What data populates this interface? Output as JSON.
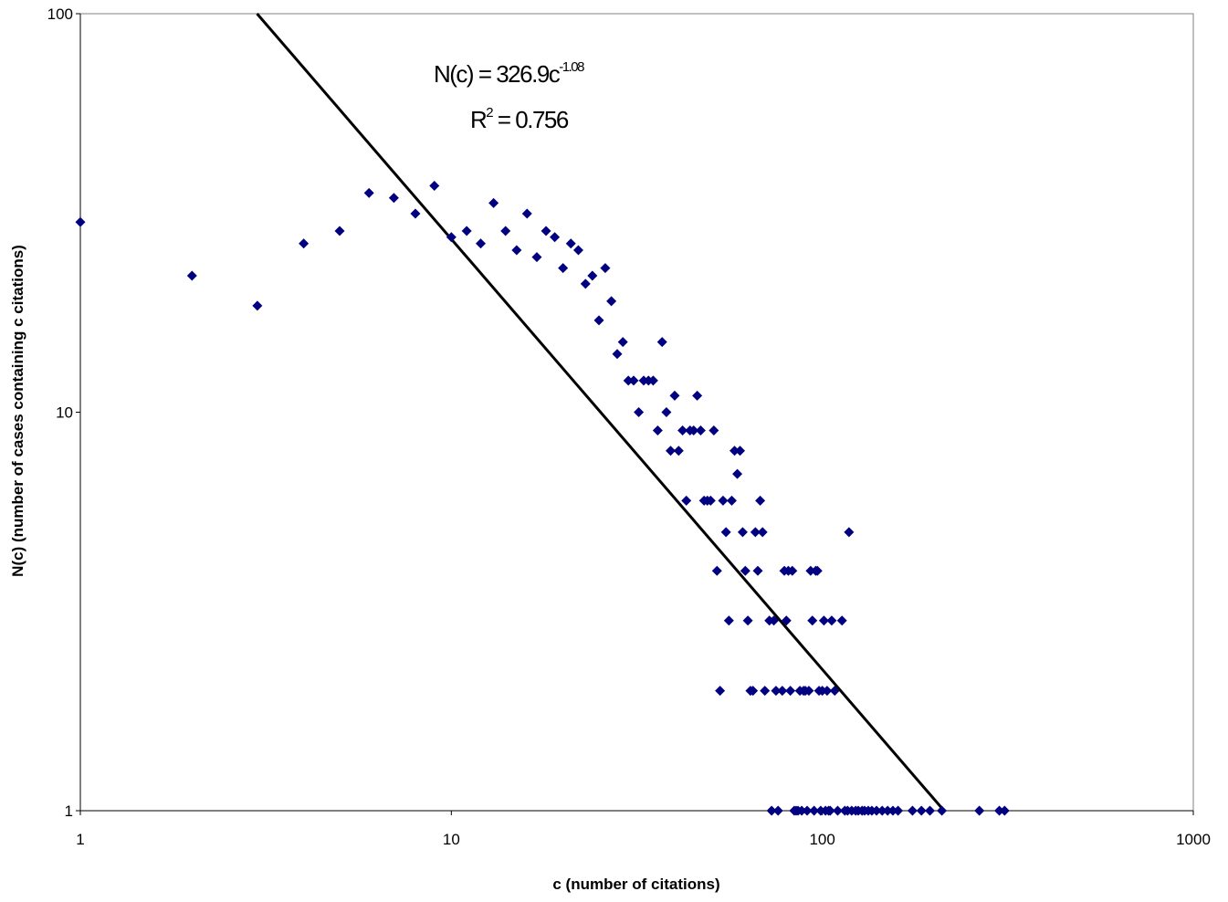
{
  "chart_data": {
    "type": "scatter",
    "title": "",
    "xlabel": "c (number of citations)",
    "ylabel": "N(c) (number of cases containing c citations)",
    "xscale": "log",
    "yscale": "log",
    "xlim": [
      1,
      1000
    ],
    "ylim": [
      1,
      100
    ],
    "x_ticks": [
      "1",
      "10",
      "100",
      "1000"
    ],
    "y_ticks": [
      "1",
      "10",
      "100"
    ],
    "grid": false,
    "legend": "none",
    "marker": "diamond",
    "marker_color": "#000080",
    "line_color": "#000000",
    "series": [
      {
        "points": [
          [
            1,
            30
          ],
          [
            2,
            22
          ],
          [
            3,
            18.5
          ],
          [
            4,
            26.5
          ],
          [
            5,
            28.5
          ],
          [
            6,
            35.5
          ],
          [
            7,
            34.5
          ],
          [
            8,
            31.5
          ],
          [
            9,
            37
          ],
          [
            10,
            27.5
          ],
          [
            11,
            28.5
          ],
          [
            12,
            26.5
          ],
          [
            13,
            33.5
          ],
          [
            14,
            28.5
          ],
          [
            15,
            25.5
          ],
          [
            16,
            31.5
          ],
          [
            17,
            24.5
          ],
          [
            18,
            28.5
          ],
          [
            19,
            27.5
          ],
          [
            20,
            23
          ],
          [
            21,
            26.5
          ],
          [
            22,
            25.5
          ],
          [
            23,
            21
          ],
          [
            24,
            22
          ],
          [
            25,
            17
          ],
          [
            26,
            23
          ],
          [
            27,
            19
          ],
          [
            28,
            14
          ],
          [
            29,
            15
          ],
          [
            30,
            12
          ],
          [
            31,
            12
          ],
          [
            32,
            10
          ],
          [
            33,
            12
          ],
          [
            34,
            12
          ],
          [
            35,
            12
          ],
          [
            36,
            9
          ],
          [
            37,
            15
          ],
          [
            38,
            10
          ],
          [
            39,
            8
          ],
          [
            40,
            11
          ],
          [
            41,
            8
          ],
          [
            42,
            9
          ],
          [
            43,
            6
          ],
          [
            44,
            9
          ],
          [
            45,
            9
          ],
          [
            46,
            11
          ],
          [
            47,
            9
          ],
          [
            48,
            6
          ],
          [
            49,
            6
          ],
          [
            50,
            6
          ],
          [
            51,
            9
          ],
          [
            52,
            4
          ],
          [
            53,
            2
          ],
          [
            54,
            6
          ],
          [
            55,
            5
          ],
          [
            56,
            3
          ],
          [
            57,
            6
          ],
          [
            58,
            8
          ],
          [
            59,
            7
          ],
          [
            60,
            8
          ],
          [
            61,
            5
          ],
          [
            62,
            4
          ],
          [
            63,
            3
          ],
          [
            64,
            2
          ],
          [
            65,
            2
          ],
          [
            66,
            5
          ],
          [
            67,
            4
          ],
          [
            68,
            6
          ],
          [
            69,
            5
          ],
          [
            70,
            2
          ],
          [
            72,
            3
          ],
          [
            73,
            1
          ],
          [
            74,
            3
          ],
          [
            75,
            2
          ],
          [
            76,
            1
          ],
          [
            78,
            2
          ],
          [
            79,
            4
          ],
          [
            80,
            3
          ],
          [
            81,
            4
          ],
          [
            82,
            2
          ],
          [
            83,
            4
          ],
          [
            84,
            1
          ],
          [
            85,
            1
          ],
          [
            86,
            1
          ],
          [
            87,
            2
          ],
          [
            88,
            1
          ],
          [
            89,
            2
          ],
          [
            90,
            2
          ],
          [
            91,
            1
          ],
          [
            92,
            2
          ],
          [
            93,
            4
          ],
          [
            94,
            3
          ],
          [
            95,
            1
          ],
          [
            96,
            4
          ],
          [
            97,
            4
          ],
          [
            98,
            2
          ],
          [
            99,
            1
          ],
          [
            100,
            2
          ],
          [
            101,
            3
          ],
          [
            102,
            1
          ],
          [
            103,
            2
          ],
          [
            104,
            1
          ],
          [
            105,
            1
          ],
          [
            106,
            3
          ],
          [
            108,
            2
          ],
          [
            110,
            1
          ],
          [
            113,
            3
          ],
          [
            115,
            1
          ],
          [
            117,
            1
          ],
          [
            118,
            5
          ],
          [
            120,
            1
          ],
          [
            123,
            1
          ],
          [
            125,
            1
          ],
          [
            128,
            1
          ],
          [
            130,
            1
          ],
          [
            133,
            1
          ],
          [
            136,
            1
          ],
          [
            140,
            1
          ],
          [
            145,
            1
          ],
          [
            150,
            1
          ],
          [
            155,
            1
          ],
          [
            160,
            1
          ],
          [
            175,
            1
          ],
          [
            185,
            1
          ],
          [
            195,
            1
          ],
          [
            210,
            1
          ],
          [
            265,
            1
          ],
          [
            300,
            1
          ],
          [
            310,
            1
          ]
        ]
      }
    ],
    "trendline": {
      "type": "power",
      "a": 326.9,
      "b": -1.08,
      "equation_label": {
        "base": "N(c) = 326.9c",
        "exponent": "-1.08"
      },
      "r2_label": {
        "base": "R",
        "exponent": "2",
        "value": " = 0.756"
      }
    }
  }
}
